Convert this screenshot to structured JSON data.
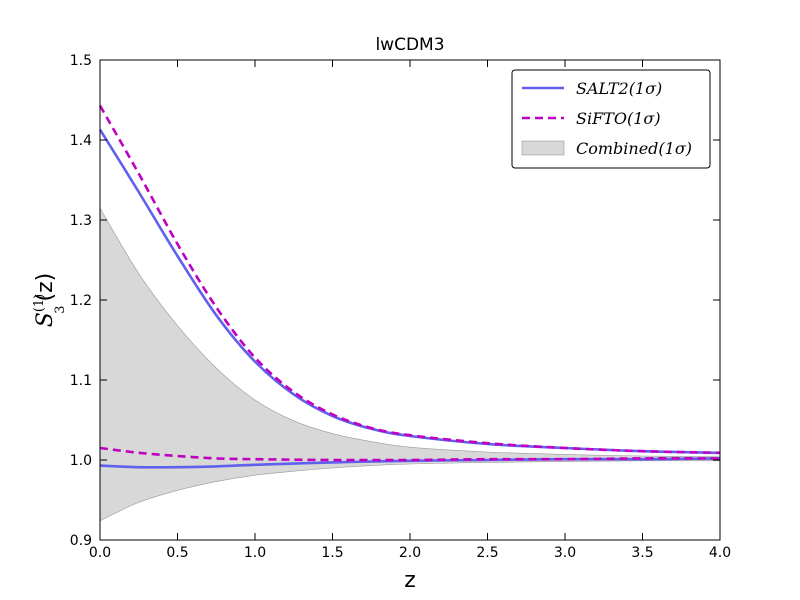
{
  "chart_data": {
    "type": "line",
    "title": "lwCDM3",
    "xlabel": "z",
    "ylabel": {
      "base": "S",
      "sub": "3",
      "sup": "(1)",
      "suffix": "(z)"
    },
    "xlim": [
      0.0,
      4.0
    ],
    "ylim": [
      0.9,
      1.5
    ],
    "xticks": [
      0.0,
      0.5,
      1.0,
      1.5,
      2.0,
      2.5,
      3.0,
      3.5,
      4.0
    ],
    "xtick_labels": [
      "0.0",
      "0.5",
      "1.0",
      "1.5",
      "2.0",
      "2.5",
      "3.0",
      "3.5",
      "4.0"
    ],
    "yticks": [
      0.9,
      1.0,
      1.1,
      1.2,
      1.3,
      1.4,
      1.5
    ],
    "ytick_labels": [
      "0.9",
      "1.0",
      "1.1",
      "1.2",
      "1.3",
      "1.4",
      "1.5"
    ],
    "grid": false,
    "legend_position": "top-right",
    "series": [
      {
        "name": "SALT2(1σ)",
        "style": "solid",
        "color": "#6060ee",
        "upper": {
          "x": [
            0,
            0.25,
            0.5,
            0.75,
            1.0,
            1.25,
            1.5,
            1.75,
            2.0,
            2.5,
            3.0,
            3.5,
            4.0
          ],
          "y": [
            1.413,
            1.335,
            1.255,
            1.181,
            1.123,
            1.082,
            1.055,
            1.039,
            1.03,
            1.02,
            1.015,
            1.011,
            1.009
          ]
        },
        "lower": {
          "x": [
            0,
            0.25,
            0.5,
            0.75,
            1.0,
            1.5,
            2.0,
            2.5,
            3.0,
            3.5,
            4.0
          ],
          "y": [
            0.993,
            0.991,
            0.991,
            0.992,
            0.994,
            0.997,
            0.999,
            1.0,
            1.001,
            1.001,
            1.002
          ]
        }
      },
      {
        "name": "SiFTO(1σ)",
        "style": "dashed",
        "color": "#c000c0",
        "upper": {
          "x": [
            0,
            0.25,
            0.5,
            0.75,
            1.0,
            1.25,
            1.5,
            1.75,
            2.0,
            2.5,
            3.0,
            3.5,
            4.0
          ],
          "y": [
            1.443,
            1.358,
            1.27,
            1.191,
            1.128,
            1.085,
            1.057,
            1.04,
            1.031,
            1.021,
            1.015,
            1.011,
            1.009
          ]
        },
        "lower": {
          "x": [
            0,
            0.25,
            0.5,
            0.75,
            1.0,
            1.5,
            2.0,
            2.5,
            3.0,
            3.5,
            4.0
          ],
          "y": [
            1.015,
            1.009,
            1.005,
            1.002,
            1.001,
            1.0,
            1.0,
            1.001,
            1.001,
            1.002,
            1.002
          ]
        }
      },
      {
        "name": "Combined(1σ)",
        "style": "band",
        "color": "#d8d8d8",
        "upper": {
          "x": [
            0,
            0.25,
            0.5,
            0.75,
            1.0,
            1.25,
            1.5,
            1.75,
            2.0,
            2.5,
            3.0,
            3.5,
            4.0
          ],
          "y": [
            1.315,
            1.233,
            1.168,
            1.115,
            1.075,
            1.049,
            1.033,
            1.023,
            1.016,
            1.01,
            1.007,
            1.005,
            1.004
          ]
        },
        "lower": {
          "x": [
            0,
            0.25,
            0.5,
            0.75,
            1.0,
            1.25,
            1.5,
            1.75,
            2.0,
            2.5,
            3.0,
            3.5,
            4.0
          ],
          "y": [
            0.924,
            0.947,
            0.962,
            0.973,
            0.981,
            0.986,
            0.99,
            0.993,
            0.995,
            0.997,
            0.998,
            0.999,
            0.999
          ]
        }
      }
    ]
  }
}
